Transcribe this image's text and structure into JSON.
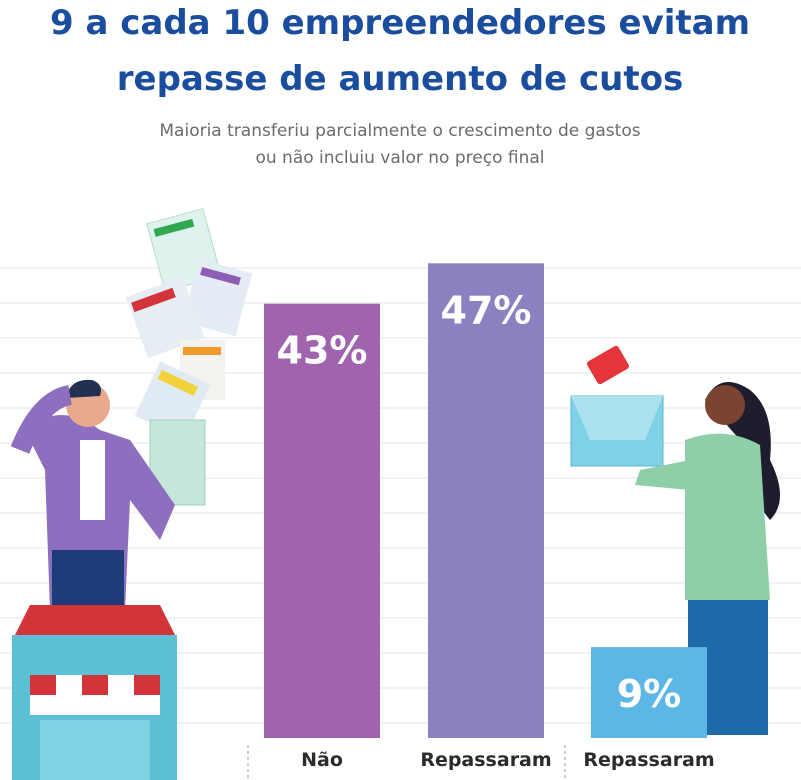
{
  "chart_data": {
    "type": "bar",
    "title": [
      "9 a cada 10 empreendedores evitam",
      "repasse de aumento de cutos"
    ],
    "subtitle": [
      "Maioria transferiu parcialmente o crescimento de gastos",
      "ou não incluiu valor no preço final"
    ],
    "categories": [
      "Não",
      "Repassaram",
      "Repassaram"
    ],
    "values": [
      43,
      47,
      9
    ],
    "value_labels": [
      "43%",
      "47%",
      "9%"
    ],
    "colors": [
      "#a063ad",
      "#8b80c0",
      "#5cb6e6"
    ]
  }
}
